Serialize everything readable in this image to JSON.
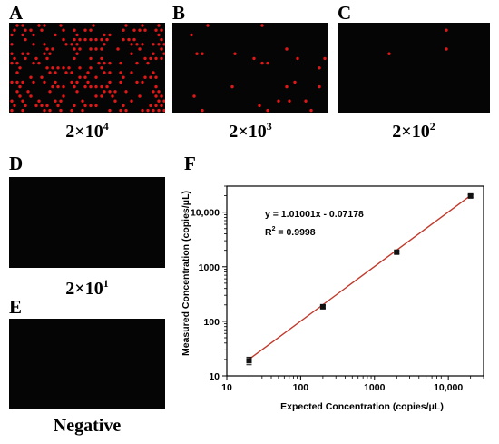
{
  "panels": [
    {
      "letter": "A",
      "base": "2×10",
      "exp": "4",
      "density": 0.42,
      "dot_color": "#e01818"
    },
    {
      "letter": "B",
      "base": "2×10",
      "exp": "3",
      "density": 0.045,
      "dot_color": "#e01818"
    },
    {
      "letter": "C",
      "base": "2×10",
      "exp": "2",
      "density": 0.006,
      "dot_color": "#e01818"
    },
    {
      "letter": "D",
      "base": "2×10",
      "exp": "1",
      "density": 0.001,
      "dot_color": "#e01818"
    },
    {
      "letter": "E",
      "caption": "Negative",
      "density": 0,
      "dot_color": "#e01818"
    }
  ],
  "chart_data": {
    "panel_letter": "F",
    "type": "scatter",
    "xlabel": "Expected Concentration (copies/μL)",
    "ylabel": "Measured Concentration (copies/μL)",
    "xscale": "log",
    "yscale": "log",
    "xlim": [
      10,
      30000
    ],
    "ylim": [
      10,
      30000
    ],
    "xticks": [
      10,
      100,
      1000,
      10000
    ],
    "xtick_labels": [
      "10",
      "100",
      "1000",
      "10,000"
    ],
    "yticks": [
      10,
      100,
      1000,
      10000
    ],
    "ytick_labels": [
      "10",
      "100",
      "1000",
      "10,000"
    ],
    "x": [
      20,
      200,
      2000,
      20000
    ],
    "y": [
      19,
      185,
      1850,
      19800
    ],
    "y_err": [
      3,
      12,
      120,
      1200
    ],
    "fit_slope": 1.01001,
    "fit_intercept": -0.07178,
    "equation": "y = 1.01001x - 0.07178",
    "r2_prefix": "R",
    "r2_exp": "2",
    "r2_value": " = 0.9998",
    "point_color": "#111111",
    "line_color": "#c0392b",
    "grid": false
  }
}
